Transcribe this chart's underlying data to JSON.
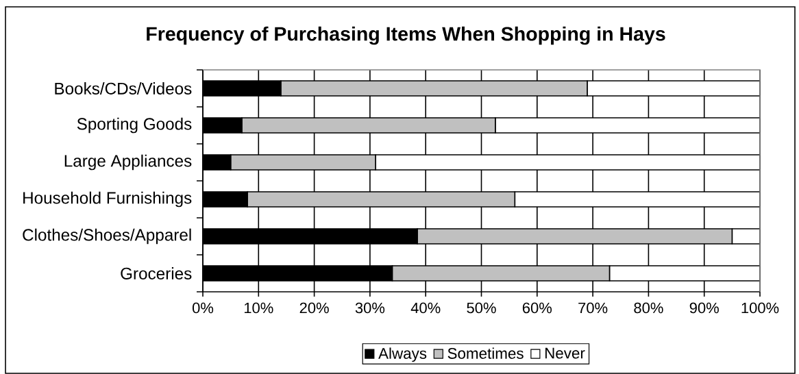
{
  "chart_data": {
    "type": "bar",
    "orientation": "horizontal",
    "stacked": true,
    "title": "Frequency of Purchasing Items When Shopping in Hays",
    "categories": [
      "Books/CDs/Videos",
      "Sporting Goods",
      "Large Appliances",
      "Household Furnishings",
      "Clothes/Shoes/Apparel",
      "Groceries"
    ],
    "series": [
      {
        "name": "Always",
        "color": "#000000",
        "values": [
          14,
          7,
          5,
          8,
          38.5,
          34
        ]
      },
      {
        "name": "Sometimes",
        "color": "#c0c0c0",
        "values": [
          55,
          45.5,
          26,
          48,
          56.5,
          39
        ]
      },
      {
        "name": "Never",
        "color": "#ffffff",
        "values": [
          31,
          47.5,
          69,
          44,
          5,
          27
        ]
      }
    ],
    "xlim": [
      0,
      100
    ],
    "xticks": [
      {
        "value": 0,
        "label": "0%"
      },
      {
        "value": 10,
        "label": "10%"
      },
      {
        "value": 20,
        "label": "20%"
      },
      {
        "value": 30,
        "label": "30%"
      },
      {
        "value": 40,
        "label": "40%"
      },
      {
        "value": 50,
        "label": "50%"
      },
      {
        "value": 60,
        "label": "60%"
      },
      {
        "value": 70,
        "label": "70%"
      },
      {
        "value": 80,
        "label": "80%"
      },
      {
        "value": 90,
        "label": "90%"
      },
      {
        "value": 100,
        "label": "100%"
      }
    ],
    "grid": "x",
    "legend": "bottom"
  }
}
